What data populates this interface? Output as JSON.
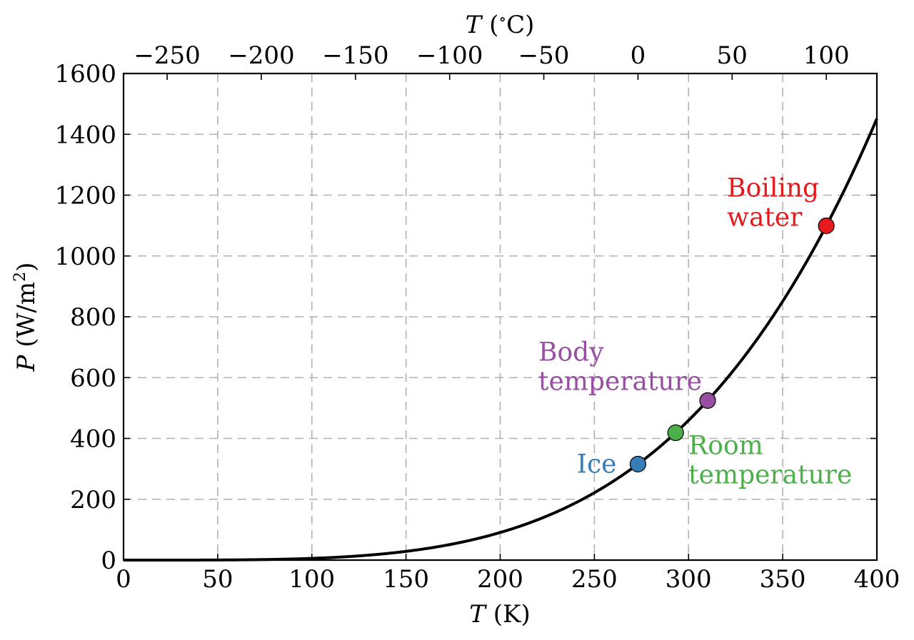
{
  "chart_data": {
    "type": "line",
    "xlabel": {
      "var": "T",
      "rest": " (K)"
    },
    "ylabel": {
      "var": "P",
      "rest": " (W/m",
      "sup": "2",
      "close": ")"
    },
    "top_xlabel": {
      "var": "T",
      "deg": "∘",
      "rest": "C)",
      "open": " ("
    },
    "xlim": [
      0,
      400
    ],
    "ylim": [
      0,
      1600
    ],
    "top_xlim": [
      -273.15,
      126.85
    ],
    "xticks": [
      0,
      50,
      100,
      150,
      200,
      250,
      300,
      350,
      400
    ],
    "xtick_labels": [
      "0",
      "50",
      "100",
      "150",
      "200",
      "250",
      "300",
      "350",
      "400"
    ],
    "yticks": [
      0,
      200,
      400,
      600,
      800,
      1000,
      1200,
      1400,
      1600
    ],
    "ytick_labels": [
      "0",
      "200",
      "400",
      "600",
      "800",
      "1000",
      "1200",
      "1400",
      "1600"
    ],
    "top_xticks": [
      -250,
      -200,
      -150,
      -100,
      -50,
      0,
      50,
      100
    ],
    "top_xtick_labels": [
      "−250",
      "−200",
      "−150",
      "−100",
      "−50",
      "0",
      "50",
      "100"
    ],
    "grid": true,
    "curve": {
      "formula": "sigma*T^4",
      "sigma": 5.67e-08,
      "color": "#000000"
    },
    "points": [
      {
        "label_lines": [
          "Ice"
        ],
        "x": 273.15,
        "y": 315.6,
        "color": "#377eb8",
        "label_pos": "left"
      },
      {
        "label_lines": [
          "Room",
          "temperature"
        ],
        "x": 293.15,
        "y": 418.7,
        "color": "#4daf4a",
        "label_pos": "below-right"
      },
      {
        "label_lines": [
          "Body",
          "temperature"
        ],
        "x": 310.15,
        "y": 524.6,
        "color": "#984ea3",
        "label_pos": "above-left"
      },
      {
        "label_lines": [
          "Boiling",
          "water"
        ],
        "x": 373.15,
        "y": 1099.2,
        "color": "#e41a1c",
        "label_pos": "above-left"
      }
    ]
  }
}
